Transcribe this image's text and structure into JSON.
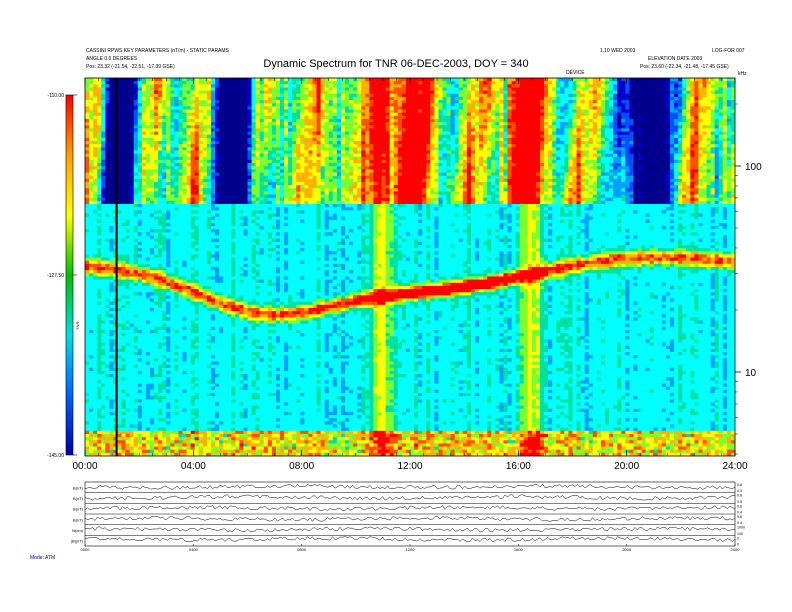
{
  "header": {
    "left_line1": "CASSINI RPWS KEY PARAMETERS (nT/m) - STATIC PARAMS",
    "left_line2": "ANGLE 0.0 DEGREES",
    "left_line3_label": "Pos:",
    "left_line3_value": "23.32 (-21.54, -22.51, -17.39 GSE)",
    "right_line1": "1.10 WED 2003",
    "right_line1b": "LOG-FOR 007",
    "right_line2": "ELEVATION DATE 2003",
    "right_line3_label": "Pos:",
    "right_line3_value": "23.60 (-22.34, -21.48, -17.45 GSE)",
    "title": "Dynamic Spectrum for TNR 06-DEC-2003, DOY = 340",
    "gap_label": "DEVICE",
    "units_label": "kHz"
  },
  "colorbar": {
    "tick_labels": [
      "-110.00",
      "-127.50",
      "-145.00"
    ],
    "units": "TNR",
    "stops": [
      "#ff0000",
      "#ffa000",
      "#ffff00",
      "#00c000",
      "#00e0e0",
      "#0060ff",
      "#0000a0"
    ]
  },
  "chart_data": {
    "type": "heatmap",
    "title": "Dynamic Spectrum for TNR 06-DEC-2003, DOY = 340",
    "x_axis": {
      "tick_labels": [
        "00:00",
        "04:00",
        "08:00",
        "12:00",
        "16:00",
        "20:00",
        "24:00"
      ],
      "range_hours": [
        0,
        24
      ]
    },
    "y_axis": {
      "scale": "log",
      "units": "kHz",
      "tick_labels": [
        "100",
        "10"
      ],
      "tick_values": [
        100,
        10
      ]
    },
    "color_scale": {
      "range": [
        -145.0,
        -110.0
      ]
    },
    "time_series_panels": [
      {
        "label": "B(nT)",
        "right_ticks": [
          "0.8",
          "0.5"
        ]
      },
      {
        "label": "B(nT)",
        "right_ticks": [
          "0.8",
          "0.5"
        ]
      },
      {
        "label": "B(nT)",
        "right_ticks": [
          "0.6",
          "0.4"
        ]
      },
      {
        "label": "B(nT)",
        "right_ticks": [
          "0.6",
          "0.4"
        ]
      },
      {
        "label": "N(cm)",
        "right_ticks": [
          "1000",
          "100"
        ]
      },
      {
        "label": "|B|(nT)",
        "right_ticks": [
          "5",
          "0"
        ]
      }
    ],
    "lower_x_tick_labels": [
      "0000",
      "0400",
      "0800",
      "1200",
      "1600",
      "2000",
      "2400"
    ],
    "footer_label": "Mode: ATM"
  }
}
